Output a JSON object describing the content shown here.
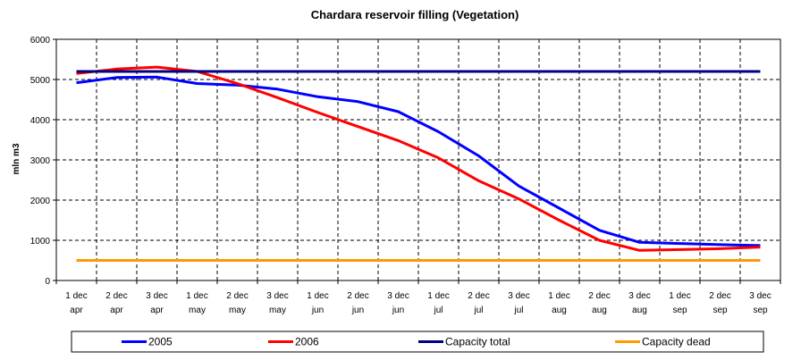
{
  "chart_data": {
    "type": "line",
    "title": "Chardara reservoir filling  (Vegetation)",
    "xlabel": "",
    "ylabel": "mln m3",
    "ylim": [
      0,
      6000
    ],
    "yticks": [
      "0",
      "1000",
      "2000",
      "3000",
      "4000",
      "5000",
      "6000"
    ],
    "categories": [
      [
        "1 dec",
        "apr"
      ],
      [
        "2 dec",
        "apr"
      ],
      [
        "3 dec",
        "apr"
      ],
      [
        "1 dec",
        "may"
      ],
      [
        "2 dec",
        "may"
      ],
      [
        "3 dec",
        "may"
      ],
      [
        "1 dec",
        "jun"
      ],
      [
        "2 dec",
        "jun"
      ],
      [
        "3 dec",
        "jun"
      ],
      [
        "1 dec",
        "jul"
      ],
      [
        "2 dec",
        "jul"
      ],
      [
        "3 dec",
        "jul"
      ],
      [
        "1 dec",
        "aug"
      ],
      [
        "2 dec",
        "aug"
      ],
      [
        "3 dec",
        "aug"
      ],
      [
        "1 dec",
        "sep"
      ],
      [
        "2 dec",
        "sep"
      ],
      [
        "3 dec",
        "sep"
      ]
    ],
    "grid": true,
    "legend_position": "bottom",
    "series": [
      {
        "name": "2005",
        "color": "#0000ff",
        "values": [
          4920,
          5050,
          5060,
          4900,
          4860,
          4760,
          4570,
          4450,
          4200,
          3700,
          3100,
          2350,
          1800,
          1250,
          950,
          920,
          890,
          870
        ]
      },
      {
        "name": "2006",
        "color": "#ff0000",
        "values": [
          5150,
          5260,
          5310,
          5200,
          4900,
          4550,
          4180,
          3830,
          3480,
          3050,
          2480,
          2030,
          1500,
          1000,
          750,
          770,
          790,
          830
        ]
      },
      {
        "name": "Capacity total",
        "color": "#000080",
        "values": [
          5200,
          5200,
          5200,
          5200,
          5200,
          5200,
          5200,
          5200,
          5200,
          5200,
          5200,
          5200,
          5200,
          5200,
          5200,
          5200,
          5200,
          5200
        ]
      },
      {
        "name": "Capacity dead",
        "color": "#ff9900",
        "values": [
          500,
          500,
          500,
          500,
          500,
          500,
          500,
          500,
          500,
          500,
          500,
          500,
          500,
          500,
          500,
          500,
          500,
          500
        ]
      }
    ]
  }
}
